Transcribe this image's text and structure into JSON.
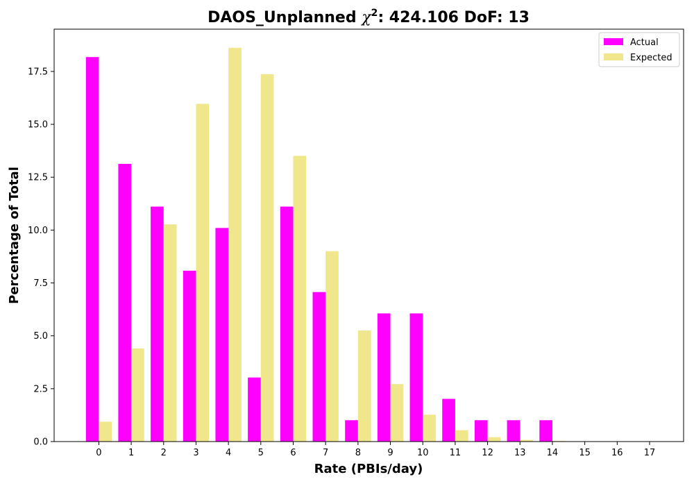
{
  "chart_data": {
    "type": "bar",
    "title_prefix": "DAOS_Unplanned ",
    "title_chi": "χ",
    "title_sup": "2",
    "title_suffix": ": 424.106 DoF: 13",
    "xlabel": "Rate (PBIs/day)",
    "ylabel": "Percentage of Total",
    "categories": [
      "0",
      "1",
      "2",
      "3",
      "4",
      "5",
      "6",
      "7",
      "8",
      "9",
      "10",
      "11",
      "12",
      "13",
      "14",
      "15",
      "16",
      "17"
    ],
    "series": [
      {
        "name": "Actual",
        "color": "#ff00ff",
        "values": [
          18.18,
          13.13,
          11.11,
          8.08,
          10.1,
          3.03,
          11.11,
          7.07,
          1.01,
          6.06,
          6.06,
          2.02,
          1.01,
          1.01,
          1.01,
          0,
          0,
          0
        ]
      },
      {
        "name": "Expected",
        "color": "#f0e68c",
        "values": [
          0.94,
          4.4,
          10.27,
          15.97,
          18.62,
          17.37,
          13.51,
          9.0,
          5.25,
          2.72,
          1.27,
          0.54,
          0.21,
          0.08,
          0.03,
          0.01,
          0.0,
          0.0
        ]
      }
    ],
    "yticks": [
      "0.0",
      "2.5",
      "5.0",
      "7.5",
      "10.0",
      "12.5",
      "15.0",
      "17.5"
    ],
    "ylim": [
      0,
      19.5
    ],
    "legend_position": "top-right",
    "grid": false
  }
}
